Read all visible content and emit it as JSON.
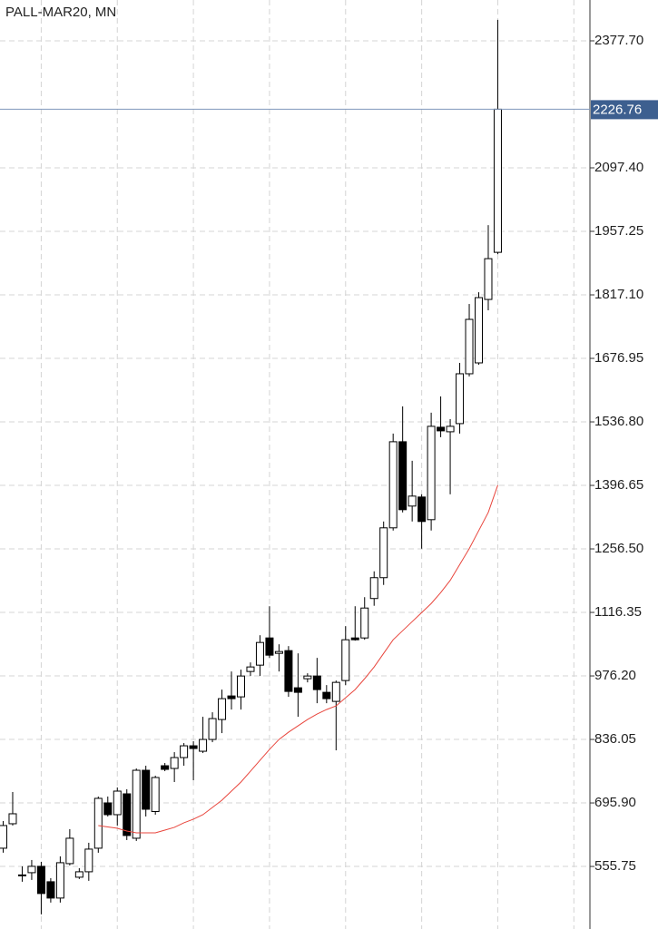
{
  "chart_data": {
    "type": "candlestick",
    "title": "PALL-MAR20, MN",
    "open": [
      596,
      650,
      536,
      542,
      556,
      522,
      486,
      562,
      532,
      544,
      596,
      696,
      670,
      716,
      618,
      768,
      677,
      778,
      772,
      796,
      822,
      810,
      836,
      880,
      932,
      930,
      986,
      1000,
      1060,
      1026,
      1032,
      950,
      970,
      976,
      940,
      920,
      966,
      1060,
      1060,
      1147,
      1193,
      1303,
      1493,
      1351,
      1371,
      1321,
      1525,
      1515,
      1533,
      1643,
      1667,
      1807,
      1911
    ],
    "high": [
      656,
      720,
      556,
      570,
      566,
      530,
      578,
      638,
      552,
      608,
      710,
      710,
      730,
      726,
      772,
      778,
      756,
      784,
      808,
      828,
      832,
      886,
      896,
      946,
      986,
      990,
      1006,
      1066,
      1130,
      1046,
      1042,
      1026,
      982,
      1016,
      956,
      966,
      1086,
      1130,
      1150,
      1207,
      1317,
      1511,
      1571,
      1451,
      1377,
      1557,
      1593,
      1543,
      1667,
      1797,
      1823,
      1971,
      2424
    ],
    "low": [
      586,
      646,
      522,
      526,
      450,
      476,
      476,
      558,
      528,
      524,
      586,
      666,
      646,
      614,
      612,
      666,
      670,
      766,
      742,
      778,
      746,
      806,
      830,
      850,
      902,
      902,
      976,
      976,
      1016,
      986,
      930,
      886,
      962,
      916,
      916,
      812,
      956,
      1054,
      1056,
      1131,
      1177,
      1297,
      1337,
      1317,
      1257,
      1297,
      1503,
      1377,
      1511,
      1637,
      1663,
      1783,
      1907
    ],
    "close": [
      646,
      672,
      537,
      556,
      496,
      486,
      564,
      618,
      544,
      594,
      706,
      670,
      722,
      624,
      768,
      682,
      752,
      770,
      796,
      822,
      816,
      836,
      882,
      926,
      926,
      976,
      996,
      1050,
      1022,
      1030,
      942,
      940,
      976,
      946,
      926,
      962,
      1056,
      1056,
      1126,
      1193,
      1303,
      1493,
      1343,
      1373,
      1317,
      1527,
      1517,
      1527,
      1643,
      1763,
      1811,
      1897,
      2226.76
    ],
    "ma": [
      null,
      null,
      null,
      null,
      null,
      null,
      null,
      null,
      null,
      null,
      646,
      643,
      640,
      634,
      630,
      630,
      630,
      636,
      642,
      652,
      660,
      670,
      686,
      702,
      722,
      742,
      766,
      790,
      814,
      836,
      852,
      866,
      880,
      892,
      902,
      910,
      928,
      946,
      970,
      996,
      1026,
      1056,
      1076,
      1096,
      1116,
      1136,
      1160,
      1187,
      1222,
      1257,
      1297,
      1337,
      1397
    ],
    "ma_color": "#e8453c",
    "up_color": "#ffffff",
    "down_color": "#000000",
    "current_price": 2226.76,
    "current_color": "#3d5f8f",
    "ylim": [
      417.7,
      2467.8
    ],
    "yticks": [
      {
        "value": 2377.7,
        "label": "2377.70"
      },
      {
        "value": 2097.4,
        "label": "2097.40"
      },
      1957.25,
      {
        "value": 1817.1,
        "label": "1817.10"
      },
      1676.95,
      {
        "value": 1536.8,
        "label": "1536.80"
      },
      1396.65,
      {
        "value": 1256.5,
        "label": "1256.50"
      },
      1116.35,
      {
        "value": 976.2,
        "label": "976.20"
      },
      836.05,
      {
        "value": 695.9,
        "label": "695.90"
      },
      555.75
    ],
    "grid": true
  }
}
